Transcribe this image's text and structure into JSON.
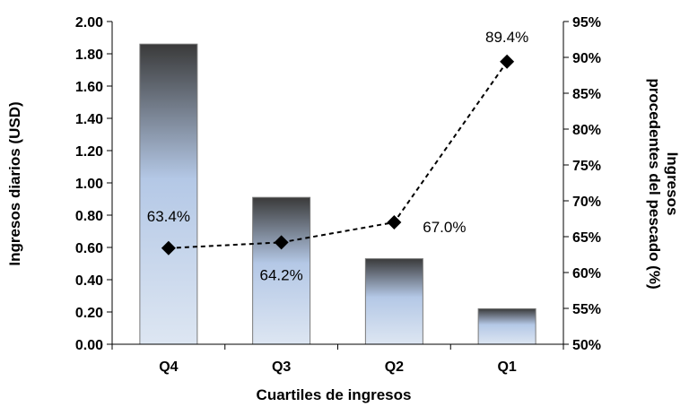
{
  "chart_data": {
    "type": "bar",
    "categories": [
      "Q4",
      "Q3",
      "Q2",
      "Q1"
    ],
    "xlabel": "Cuartiles de ingresos",
    "ylabel": "Ingresos diarios (USD)",
    "y2label_lines": [
      "Ingresos",
      "procedentes del pescado (%)"
    ],
    "ylim": [
      0,
      2.0
    ],
    "y_ticks": [
      "0.00",
      "0.20",
      "0.40",
      "0.60",
      "0.80",
      "1.00",
      "1.20",
      "1.40",
      "1.60",
      "1.80",
      "2.00"
    ],
    "y2lim": [
      50,
      95
    ],
    "y2_ticks": [
      "50%",
      "55%",
      "60%",
      "65%",
      "70%",
      "75%",
      "80%",
      "85%",
      "90%",
      "95%"
    ],
    "series": [
      {
        "type": "bar",
        "axis": "left",
        "values": [
          1.86,
          0.91,
          0.53,
          0.22
        ]
      },
      {
        "type": "line",
        "axis": "right",
        "style": "dashed",
        "marker": "diamond",
        "values": [
          63.4,
          64.2,
          67.0,
          89.4
        ],
        "labels": [
          "63.4%",
          "64.2%",
          "67.0%",
          "89.4%"
        ]
      }
    ],
    "grid": false,
    "colors": {
      "bar_top": "#3a3a3a",
      "bar_mid": "#b4c8e6",
      "bar_bottom": "#dde6f2",
      "line": "#000000"
    }
  }
}
